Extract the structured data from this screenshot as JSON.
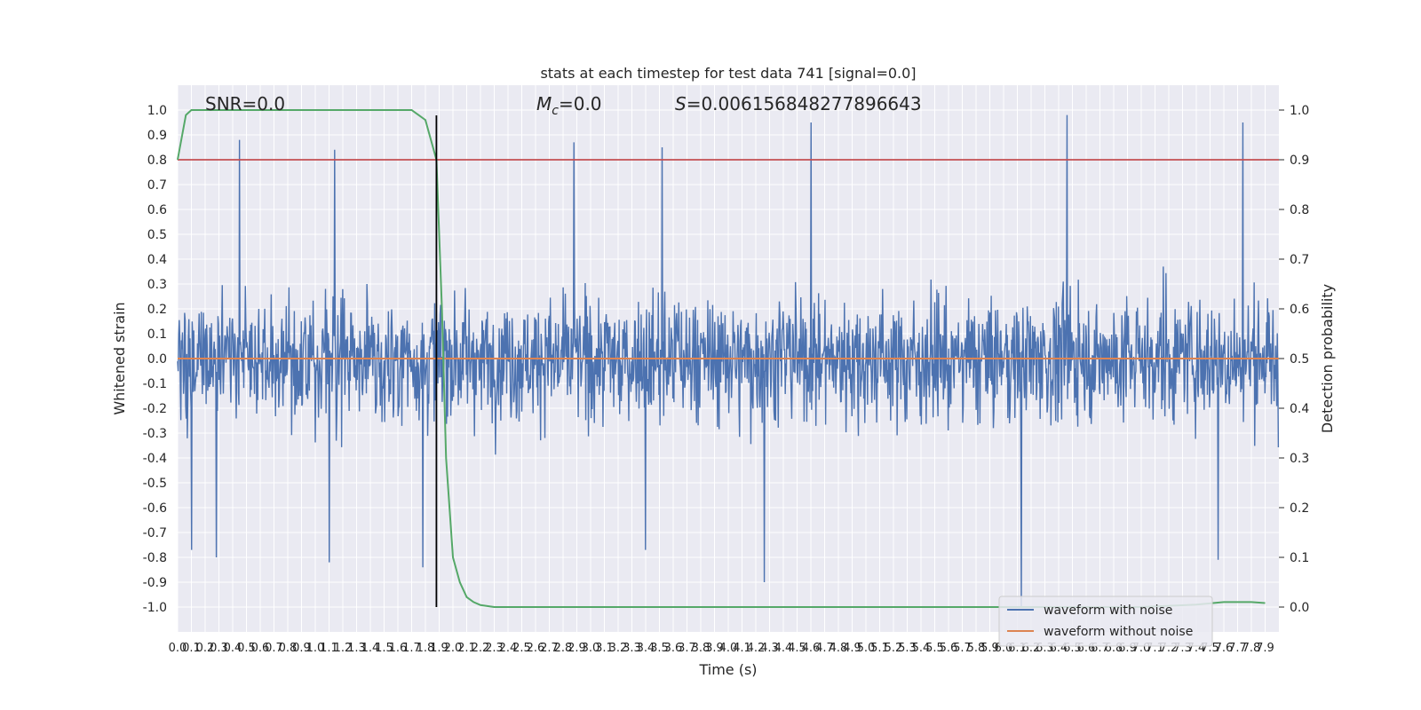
{
  "chart_data": {
    "type": "line",
    "title": "stats at each timestep for test data 741 [signal=0.0]",
    "xlabel": "Time (s)",
    "ylabel": "Whitened strain",
    "y2label": "Detection probability",
    "xlim": [
      0.0,
      8.0
    ],
    "ylim": [
      -1.1,
      1.1
    ],
    "y2lim": [
      -0.05,
      1.05
    ],
    "grid": true,
    "legend_position": "lower-right",
    "annotations": {
      "snr": "SNR=0.0",
      "mc_symbol": "M",
      "mc_sub": "c",
      "mc_value": "=0.0",
      "s_symbol": "S",
      "s_value": "=0.006156848277896643"
    },
    "threshold_level": 0.9,
    "marker_time": 1.88,
    "yticks": [
      "1.0",
      "0.9",
      "0.8",
      "0.7",
      "0.6",
      "0.5",
      "0.4",
      "0.3",
      "0.2",
      "0.1",
      "0.0",
      "-0.1",
      "-0.2",
      "-0.3",
      "-0.4",
      "-0.5",
      "-0.6",
      "-0.7",
      "-0.8",
      "-0.9",
      "-1.0"
    ],
    "y2ticks": [
      "1.0",
      "0.9",
      "0.8",
      "0.7",
      "0.6",
      "0.5",
      "0.4",
      "0.3",
      "0.2",
      "0.1",
      "0.0"
    ],
    "xticks": [
      "0.0",
      "0.1",
      "0.2",
      "0.3",
      "0.4",
      "0.5",
      "0.6",
      "0.7",
      "0.8",
      "0.9",
      "1.0",
      "1.1",
      "1.2",
      "1.3",
      "1.4",
      "1.5",
      "1.6",
      "1.7",
      "1.8",
      "1.9",
      "2.0",
      "2.1",
      "2.2",
      "2.3",
      "2.4",
      "2.5",
      "2.6",
      "2.7",
      "2.8",
      "2.9",
      "3.0",
      "3.1",
      "3.2",
      "3.3",
      "3.4",
      "3.5",
      "3.6",
      "3.7",
      "3.8",
      "3.9",
      "4.0",
      "4.1",
      "4.2",
      "4.3",
      "4.4",
      "4.5",
      "4.6",
      "4.7",
      "4.8",
      "4.9",
      "5.0",
      "5.1",
      "5.2",
      "5.3",
      "5.4",
      "5.5",
      "5.6",
      "5.7",
      "5.8",
      "5.9",
      "6.0",
      "6.1",
      "6.2",
      "6.3",
      "6.4",
      "6.5",
      "6.6",
      "6.7",
      "6.8",
      "6.9",
      "7.0",
      "7.1",
      "7.2",
      "7.3",
      "7.4",
      "7.5",
      "7.6",
      "7.7",
      "7.8",
      "7.9"
    ],
    "series": [
      {
        "name": "waveform with noise",
        "color": "#4c72b0",
        "sample_rate_hz": 256,
        "duration_s": 8.0,
        "envelope_typical": 0.38,
        "peaks": [
          {
            "t": 0.45,
            "v": 0.88
          },
          {
            "t": 1.14,
            "v": 0.84
          },
          {
            "t": 2.88,
            "v": 0.87
          },
          {
            "t": 3.52,
            "v": 0.85
          },
          {
            "t": 4.6,
            "v": 0.95
          },
          {
            "t": 6.46,
            "v": 0.98
          },
          {
            "t": 7.74,
            "v": 0.95
          },
          {
            "t": 6.13,
            "v": -1.0
          },
          {
            "t": 4.26,
            "v": -0.9
          },
          {
            "t": 0.1,
            "v": -0.77
          },
          {
            "t": 0.28,
            "v": -0.8
          },
          {
            "t": 1.1,
            "v": -0.82
          },
          {
            "t": 1.78,
            "v": -0.84
          },
          {
            "t": 7.56,
            "v": -0.81
          },
          {
            "t": 3.4,
            "v": -0.77
          }
        ]
      },
      {
        "name": "waveform without noise",
        "color": "#dd8452",
        "constant_value": 0.0
      },
      {
        "color": "#55a868",
        "x": [
          0.0,
          0.06,
          0.1,
          0.2,
          0.5,
          1.0,
          1.5,
          1.7,
          1.75,
          1.8,
          1.88,
          1.92,
          1.95,
          2.0,
          2.05,
          2.1,
          2.15,
          2.2,
          2.25,
          2.3,
          2.5,
          3.0,
          4.0,
          5.0,
          6.0,
          7.0,
          7.4,
          7.6,
          7.8,
          7.9
        ],
        "values": [
          0.9,
          0.99,
          1.0,
          1.0,
          1.0,
          1.0,
          1.0,
          1.0,
          0.99,
          0.98,
          0.9,
          0.6,
          0.3,
          0.1,
          0.05,
          0.02,
          0.01,
          0.004,
          0.002,
          0.0,
          0.0,
          0.0,
          0.0,
          0.0,
          0.0,
          0.0,
          0.005,
          0.01,
          0.01,
          0.008
        ]
      }
    ]
  }
}
